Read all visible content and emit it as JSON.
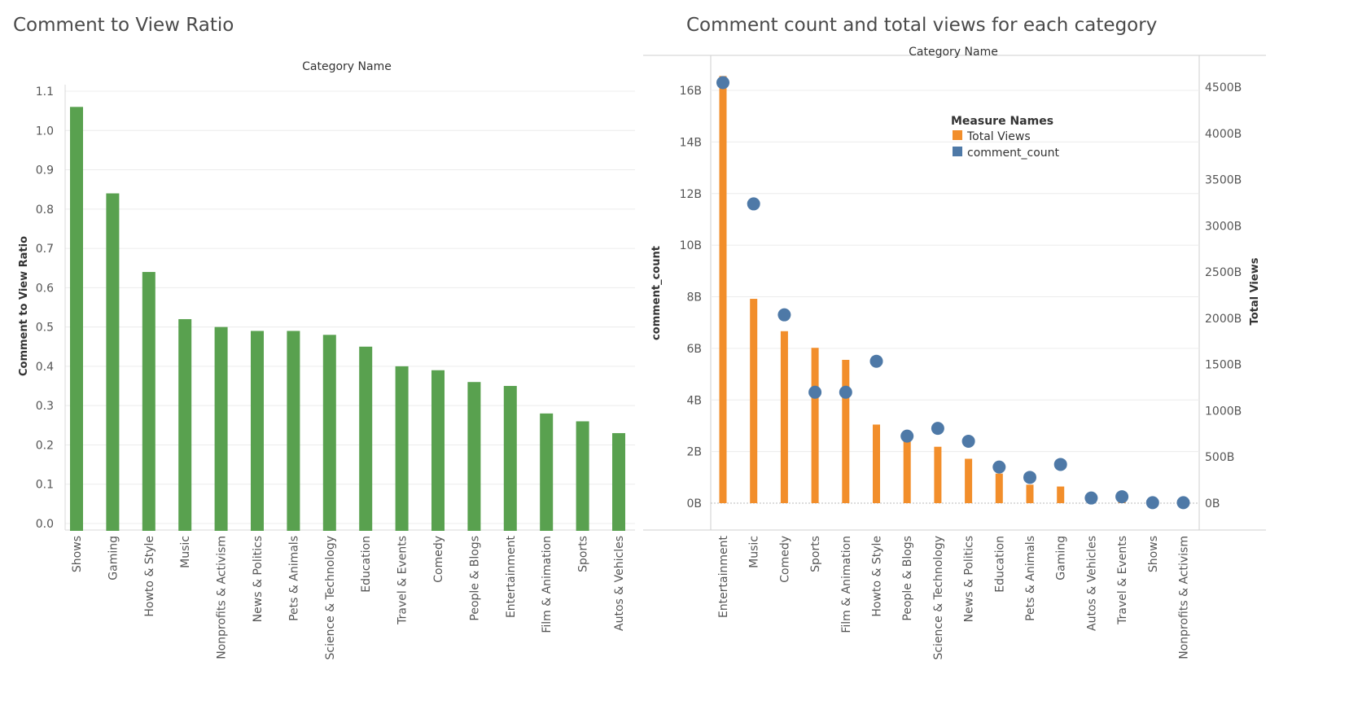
{
  "colors": {
    "bar_green": "#59a14f",
    "total_views": "#f28e2b",
    "comment_count": "#4e79a7",
    "grid": "#ececec",
    "axis_text": "#555555"
  },
  "chart_data": [
    {
      "type": "bar",
      "title": "Comment to View Ratio",
      "header": "Category Name",
      "ylabel": "Comment to View Ratio",
      "ylim": [
        0,
        1.1
      ],
      "yticks": [
        "0.0",
        "0.1",
        "0.2",
        "0.3",
        "0.4",
        "0.5",
        "0.6",
        "0.7",
        "0.8",
        "0.9",
        "1.0",
        "1.1"
      ],
      "categories": [
        "Shows",
        "Gaming",
        "Howto & Style",
        "Music",
        "Nonprofits & Activism",
        "News & Politics",
        "Pets & Animals",
        "Science & Technology",
        "Education",
        "Travel & Events",
        "Comedy",
        "People & Blogs",
        "Entertainment",
        "Film & Animation",
        "Sports",
        "Autos & Vehicles"
      ],
      "values": [
        1.06,
        0.84,
        0.64,
        0.52,
        0.5,
        0.49,
        0.49,
        0.48,
        0.45,
        0.4,
        0.39,
        0.36,
        0.35,
        0.28,
        0.26,
        0.23
      ],
      "grid": true
    },
    {
      "type": "bar",
      "title": "Comment count and total views for each category",
      "header": "Category Name",
      "legend_title": "Measure Names",
      "legend_placement": "top-right",
      "ylabel_left": "comment_count",
      "ylabel_right": "Total Views",
      "ylim_left": [
        0,
        16.9
      ],
      "ylim_right": [
        0,
        4758
      ],
      "yticks_left": [
        "0B",
        "2B",
        "4B",
        "6B",
        "8B",
        "10B",
        "12B",
        "14B",
        "16B"
      ],
      "yticks_right": [
        "0B",
        "500B",
        "1000B",
        "1500B",
        "2000B",
        "2500B",
        "3000B",
        "3500B",
        "4000B",
        "4500B"
      ],
      "categories": [
        "Entertainment",
        "Music",
        "Comedy",
        "Sports",
        "Film & Animation",
        "Howto & Style",
        "People & Blogs",
        "Science & Technology",
        "News & Politics",
        "Education",
        "Pets & Animals",
        "Gaming",
        "Autos & Vehicles",
        "Travel & Events",
        "Shows",
        "Nonprofits & Activism"
      ],
      "series": [
        {
          "name": "Total Views",
          "unit": "B",
          "axis": "right",
          "mark": "bar",
          "values": [
            4620,
            2210,
            1860,
            1680,
            1550,
            850,
            740,
            610,
            480,
            320,
            200,
            180,
            80,
            55,
            3,
            2
          ]
        },
        {
          "name": "comment_count",
          "unit": "B",
          "axis": "left",
          "mark": "circle",
          "values": [
            16.3,
            11.6,
            7.3,
            4.3,
            4.3,
            5.5,
            2.6,
            2.9,
            2.4,
            1.4,
            1.0,
            1.5,
            0.2,
            0.25,
            0.02,
            0.02
          ]
        }
      ],
      "grid": true
    }
  ]
}
